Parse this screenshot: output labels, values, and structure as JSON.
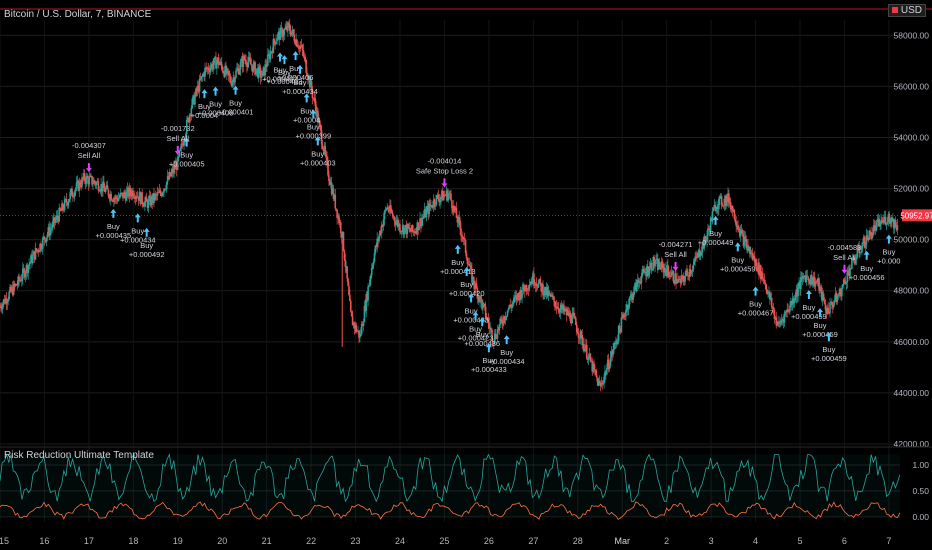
{
  "header": {
    "symbol_line": "Bitcoin / U.S. Dollar, 7, BINANCE",
    "currency": "USD"
  },
  "indicator": {
    "title": "Risk Reduction Ultimate Template"
  },
  "colors": {
    "up": "#26a69a",
    "down": "#ef5350",
    "osc_fast": "#26a69a",
    "osc_slow": "#ff7043",
    "buy_arrow": "#4fc3f7",
    "sell_arrow": "#e040fb",
    "price_badge": "#f23645"
  },
  "chart_data": [
    {
      "type": "candlestick",
      "title": "Bitcoin / U.S. Dollar, 7, BINANCE",
      "ylim": [
        42000,
        58600
      ],
      "y_ticks": [
        "58000.00",
        "56000.00",
        "54000.00",
        "52000.00",
        "50000.00",
        "48000.00",
        "46000.00",
        "44000.00",
        "42000.00"
      ],
      "x_ticks": [
        "15",
        "16",
        "17",
        "18",
        "19",
        "20",
        "21",
        "22",
        "23",
        "24",
        "25",
        "26",
        "27",
        "28",
        "Mar",
        "2",
        "3",
        "4",
        "5",
        "6",
        "7"
      ],
      "last_price": "50952.97",
      "price_path": [
        [
          15,
          47400
        ],
        [
          15.4,
          48300
        ],
        [
          15.8,
          49500
        ],
        [
          16.2,
          50600
        ],
        [
          16.6,
          51800
        ],
        [
          16.9,
          52400
        ],
        [
          17.2,
          52200
        ],
        [
          17.6,
          51600
        ],
        [
          18.0,
          51900
        ],
        [
          18.3,
          51400
        ],
        [
          18.6,
          51800
        ],
        [
          19.0,
          53000
        ],
        [
          19.3,
          55200
        ],
        [
          19.6,
          56600
        ],
        [
          19.9,
          57000
        ],
        [
          20.2,
          56200
        ],
        [
          20.5,
          57100
        ],
        [
          20.9,
          56400
        ],
        [
          21.2,
          57900
        ],
        [
          21.5,
          58300
        ],
        [
          21.8,
          57400
        ],
        [
          22.1,
          55200
        ],
        [
          22.4,
          52500
        ],
        [
          22.7,
          50200
        ],
        [
          22.9,
          46900
        ],
        [
          23.1,
          46200
        ],
        [
          23.4,
          49300
        ],
        [
          23.7,
          51300
        ],
        [
          24.0,
          50500
        ],
        [
          24.3,
          50300
        ],
        [
          24.6,
          51100
        ],
        [
          24.8,
          51600
        ],
        [
          25.1,
          51800
        ],
        [
          25.4,
          50200
        ],
        [
          25.6,
          48600
        ],
        [
          25.9,
          47200
        ],
        [
          26.1,
          46100
        ],
        [
          26.4,
          47200
        ],
        [
          26.7,
          47900
        ],
        [
          27.0,
          48500
        ],
        [
          27.3,
          47900
        ],
        [
          27.6,
          47300
        ],
        [
          27.9,
          46900
        ],
        [
          28.2,
          45600
        ],
        [
          28.5,
          44200
        ],
        [
          28.8,
          45700
        ],
        [
          29.1,
          47400
        ],
        [
          29.4,
          48500
        ],
        [
          29.7,
          49100
        ],
        [
          30.0,
          48800
        ],
        [
          30.3,
          48300
        ],
        [
          30.6,
          49000
        ],
        [
          30.9,
          50100
        ],
        [
          31.1,
          51400
        ],
        [
          31.4,
          51600
        ],
        [
          31.7,
          50100
        ],
        [
          32.0,
          49100
        ],
        [
          32.2,
          48400
        ],
        [
          32.5,
          46600
        ],
        [
          32.8,
          47500
        ],
        [
          33.1,
          48600
        ],
        [
          33.4,
          48300
        ],
        [
          33.6,
          47200
        ],
        [
          33.9,
          47900
        ],
        [
          34.1,
          48800
        ],
        [
          34.4,
          49800
        ],
        [
          34.7,
          50500
        ],
        [
          35.0,
          50900
        ],
        [
          35.2,
          50500
        ]
      ],
      "series": [
        {
          "name": "Buy",
          "entries": [
            {
              "x": 17.55,
              "value": "+0.000435"
            },
            {
              "x": 18.1,
              "value": "+0.000434"
            },
            {
              "x": 18.3,
              "value": "+0.000492"
            },
            {
              "x": 19.2,
              "value": "+0.000405"
            },
            {
              "x": 19.6,
              "value": "+0.0004"
            },
            {
              "x": 19.85,
              "value": "+0.000406"
            },
            {
              "x": 20.3,
              "value": "+0.000401"
            },
            {
              "x": 21.3,
              "value": "+0.000402"
            },
            {
              "x": 21.4,
              "value": "+0.000403"
            },
            {
              "x": 21.65,
              "value": "+0.000406"
            },
            {
              "x": 21.75,
              "value": "+0.000434"
            },
            {
              "x": 21.9,
              "value": "+0.0004"
            },
            {
              "x": 22.05,
              "value": "+0.000399"
            },
            {
              "x": 22.15,
              "value": "+0.000403"
            },
            {
              "x": 25.3,
              "value": "+0.000413"
            },
            {
              "x": 25.5,
              "value": "+0.000420"
            },
            {
              "x": 25.6,
              "value": "+0.000433"
            },
            {
              "x": 25.7,
              "value": "+0.000423"
            },
            {
              "x": 25.85,
              "value": "+0.000436"
            },
            {
              "x": 26.0,
              "value": "+0.000433"
            },
            {
              "x": 26.4,
              "value": "+0.000434"
            },
            {
              "x": 31.1,
              "value": "+0.000449"
            },
            {
              "x": 31.6,
              "value": "+0.000459"
            },
            {
              "x": 32.0,
              "value": "+0.000467"
            },
            {
              "x": 33.2,
              "value": "+0.000459"
            },
            {
              "x": 33.45,
              "value": "+0.000459"
            },
            {
              "x": 33.65,
              "value": "+0.000459"
            },
            {
              "x": 34.5,
              "value": "+0.000456"
            },
            {
              "x": 35.0,
              "value": "+0.000"
            }
          ]
        },
        {
          "name": "Sell All",
          "entries": [
            {
              "x": 17.0,
              "value": "-0.004307"
            },
            {
              "x": 19.0,
              "value": "-0.001732"
            },
            {
              "x": 30.2,
              "value": "-0.004271"
            },
            {
              "x": 34.0,
              "value": "-0.004583"
            }
          ]
        },
        {
          "name": "Safe Stop Loss 2",
          "entries": [
            {
              "x": 25.0,
              "value": "-0.004014"
            }
          ]
        }
      ]
    },
    {
      "type": "line",
      "title": "Risk Reduction Ultimate Template",
      "ylim": [
        -0.1,
        1.25
      ],
      "y_ticks": [
        "1.00",
        "0.50",
        "0.00"
      ],
      "series": [
        {
          "name": "",
          "values": "oscillating 0.4 to 1.2"
        },
        {
          "name": "",
          "values": "oscillating -0.05 to 0.35"
        }
      ]
    }
  ],
  "labels": {
    "buy": "Buy",
    "sell_all": "Sell All",
    "safe_stop": "Safe Stop Loss 2"
  }
}
